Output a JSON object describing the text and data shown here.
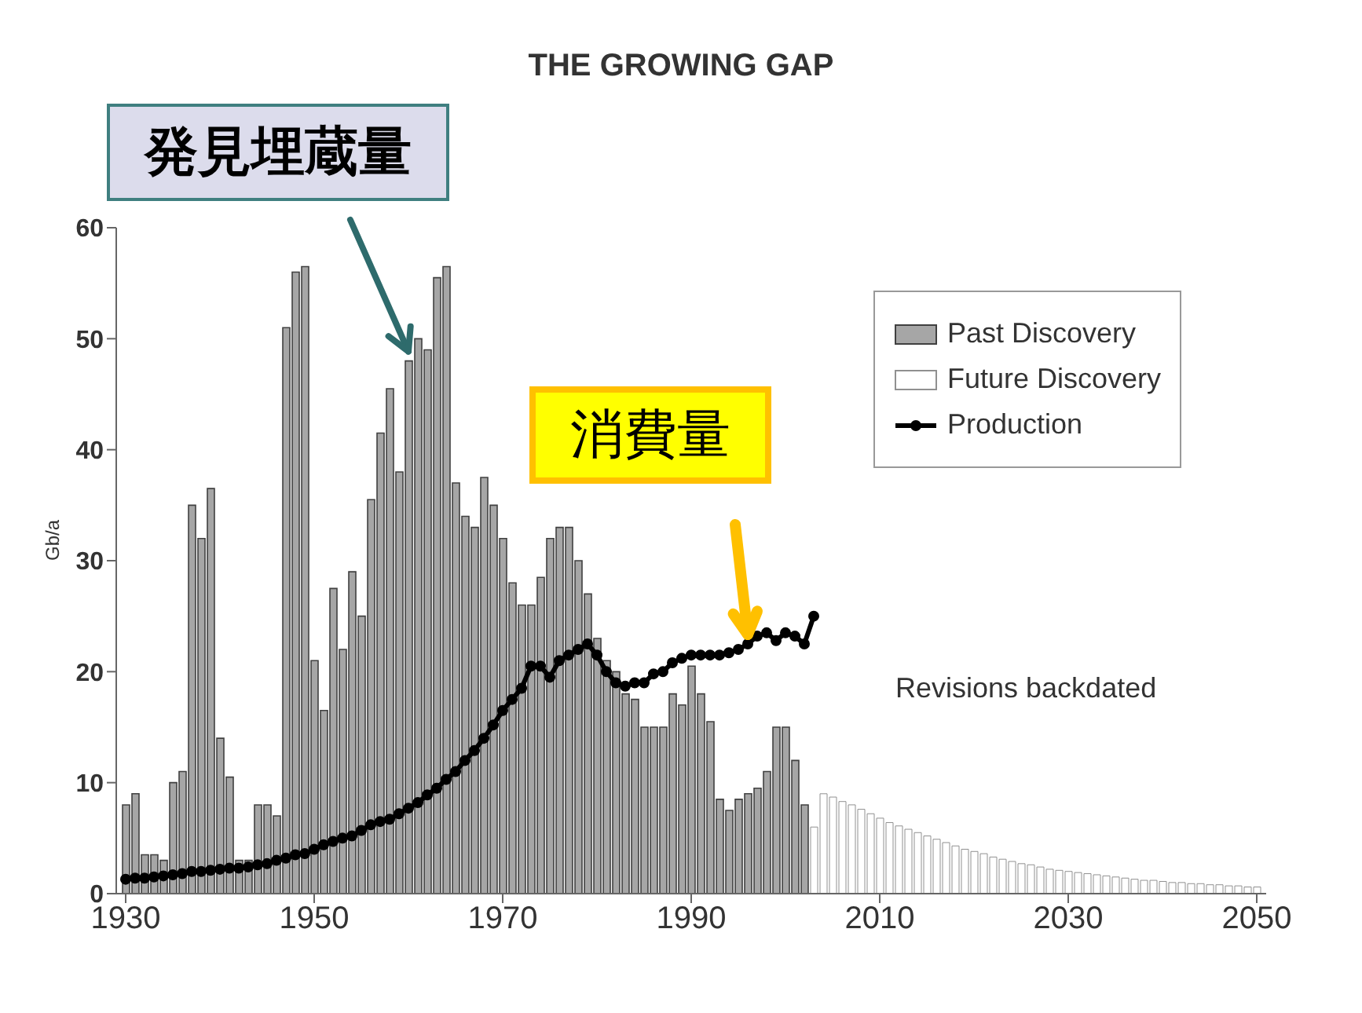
{
  "chart_data": {
    "type": "bar",
    "title": "THE GROWING GAP",
    "ylabel": "Gb/a",
    "xlim": [
      1929,
      2051
    ],
    "xticks": [
      1930,
      1950,
      1970,
      1990,
      2010,
      2030,
      2050
    ],
    "ylim": [
      0,
      60
    ],
    "yticks": [
      0,
      10,
      20,
      30,
      40,
      50,
      60
    ],
    "grid": false,
    "legend": "top right",
    "marker": "circle",
    "line_style": "solid",
    "series": [
      {
        "name": "Past Discovery",
        "color": "#a6a6a6",
        "x": [
          1930,
          1931,
          1932,
          1933,
          1934,
          1935,
          1936,
          1937,
          1938,
          1939,
          1940,
          1941,
          1942,
          1943,
          1944,
          1945,
          1946,
          1947,
          1948,
          1949,
          1950,
          1951,
          1952,
          1953,
          1954,
          1955,
          1956,
          1957,
          1958,
          1959,
          1960,
          1961,
          1962,
          1963,
          1964,
          1965,
          1966,
          1967,
          1968,
          1969,
          1970,
          1971,
          1972,
          1973,
          1974,
          1975,
          1976,
          1977,
          1978,
          1979,
          1980,
          1981,
          1982,
          1983,
          1984,
          1985,
          1986,
          1987,
          1988,
          1989,
          1990,
          1991,
          1992,
          1993,
          1994,
          1995,
          1996,
          1997,
          1998,
          1999,
          2000,
          2001,
          2002
        ],
        "values": [
          8,
          9,
          3.5,
          3.5,
          3,
          10,
          11,
          35,
          32,
          36.5,
          14,
          10.5,
          3,
          3,
          8,
          8,
          7,
          51,
          56,
          56.5,
          21,
          16.5,
          27.5,
          22,
          29,
          25,
          35.5,
          41.5,
          45.5,
          38,
          48,
          50,
          49,
          55.5,
          56.5,
          37,
          34,
          33,
          37.5,
          35,
          32,
          28,
          26,
          26,
          28.5,
          32,
          33,
          33,
          30,
          27,
          23,
          21,
          20,
          18,
          17.5,
          15,
          15,
          15,
          18,
          17,
          20.5,
          18,
          15.5,
          8.5,
          7.5,
          8.5,
          9,
          9.5,
          11,
          15,
          15,
          12,
          8
        ]
      },
      {
        "name": "Future Discovery",
        "color": "#ffffff",
        "x": [
          2003,
          2004,
          2005,
          2006,
          2007,
          2008,
          2009,
          2010,
          2011,
          2012,
          2013,
          2014,
          2015,
          2016,
          2017,
          2018,
          2019,
          2020,
          2021,
          2022,
          2023,
          2024,
          2025,
          2026,
          2027,
          2028,
          2029,
          2030,
          2031,
          2032,
          2033,
          2034,
          2035,
          2036,
          2037,
          2038,
          2039,
          2040,
          2041,
          2042,
          2043,
          2044,
          2045,
          2046,
          2047,
          2048,
          2049,
          2050
        ],
        "values": [
          6,
          9,
          8.7,
          8.3,
          8,
          7.6,
          7.2,
          6.8,
          6.4,
          6.1,
          5.8,
          5.5,
          5.2,
          4.9,
          4.6,
          4.3,
          4,
          3.8,
          3.6,
          3.3,
          3.1,
          2.9,
          2.7,
          2.6,
          2.4,
          2.2,
          2.1,
          2,
          1.9,
          1.8,
          1.7,
          1.6,
          1.5,
          1.4,
          1.3,
          1.2,
          1.2,
          1.1,
          1,
          1,
          0.9,
          0.9,
          0.8,
          0.8,
          0.7,
          0.7,
          0.6,
          0.6
        ]
      },
      {
        "name": "Production",
        "type": "line",
        "color": "#000000",
        "x": [
          1930,
          1931,
          1932,
          1933,
          1934,
          1935,
          1936,
          1937,
          1938,
          1939,
          1940,
          1941,
          1942,
          1943,
          1944,
          1945,
          1946,
          1947,
          1948,
          1949,
          1950,
          1951,
          1952,
          1953,
          1954,
          1955,
          1956,
          1957,
          1958,
          1959,
          1960,
          1961,
          1962,
          1963,
          1964,
          1965,
          1966,
          1967,
          1968,
          1969,
          1970,
          1971,
          1972,
          1973,
          1974,
          1975,
          1976,
          1977,
          1978,
          1979,
          1980,
          1981,
          1982,
          1983,
          1984,
          1985,
          1986,
          1987,
          1988,
          1989,
          1990,
          1991,
          1992,
          1993,
          1994,
          1995,
          1996,
          1997,
          1998,
          1999,
          2000,
          2001,
          2002,
          2003
        ],
        "values": [
          1.3,
          1.4,
          1.4,
          1.5,
          1.6,
          1.7,
          1.8,
          2,
          2,
          2.1,
          2.2,
          2.3,
          2.3,
          2.4,
          2.6,
          2.7,
          3,
          3.2,
          3.5,
          3.6,
          4,
          4.4,
          4.7,
          5,
          5.2,
          5.7,
          6.2,
          6.5,
          6.7,
          7.2,
          7.7,
          8.2,
          8.9,
          9.5,
          10.3,
          11,
          12,
          12.9,
          14,
          15.2,
          16.5,
          17.5,
          18.5,
          20.5,
          20.5,
          19.5,
          21,
          21.5,
          22,
          22.5,
          21.5,
          20,
          19,
          18.7,
          19,
          19,
          19.8,
          20,
          20.8,
          21.2,
          21.5,
          21.5,
          21.5,
          21.5,
          21.7,
          22,
          22.5,
          23.2,
          23.5,
          22.8,
          23.5,
          23.2,
          22.5,
          25
        ]
      }
    ],
    "annotations": [
      {
        "text": "発見埋蔵量",
        "x": 1960,
        "y": 48
      },
      {
        "text": "消費量",
        "x": 1996,
        "y": 22.5
      },
      "Revisions backdated"
    ]
  }
}
